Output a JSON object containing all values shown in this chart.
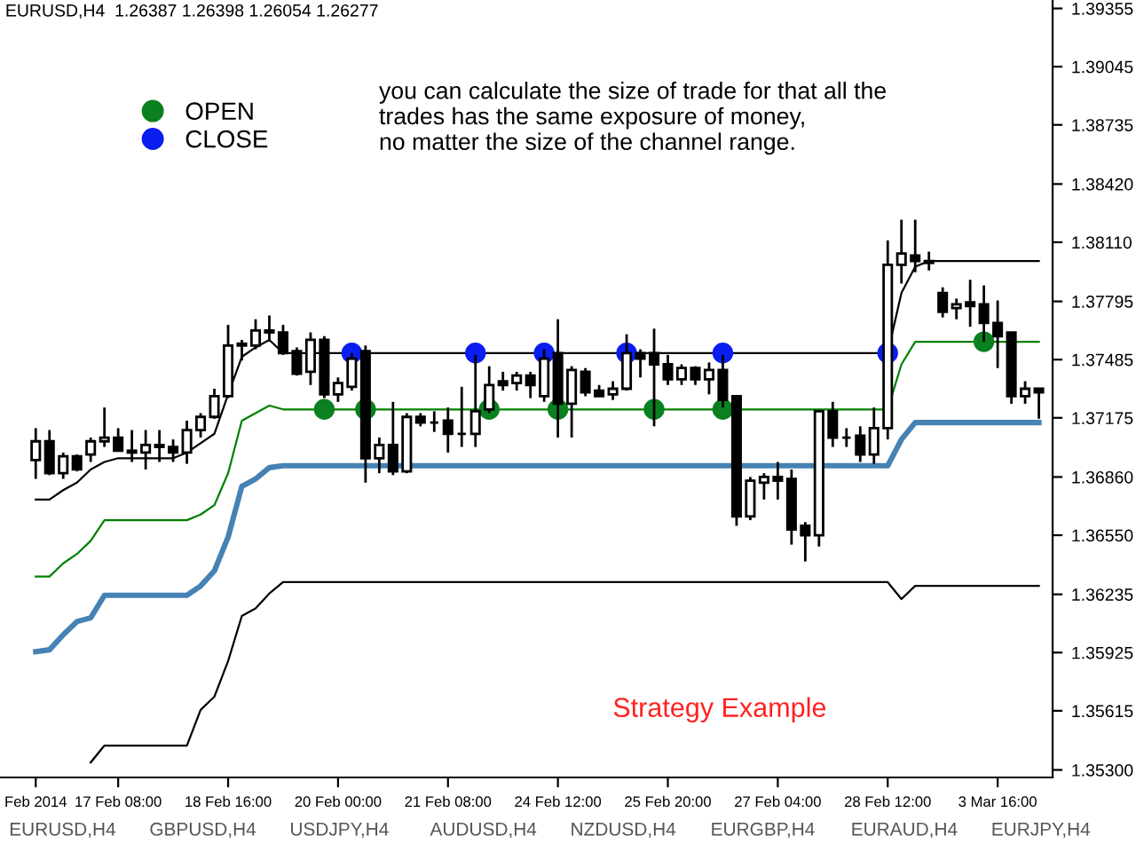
{
  "chart_data": {
    "type": "candlestick",
    "title": "EURUSD,H4  1.26387 1.26398 1.26054 1.26277",
    "categories": [
      "Feb 2014",
      null,
      null,
      null,
      null,
      null,
      "17 Feb 08:00",
      null,
      null,
      null,
      null,
      null,
      null,
      null,
      "18 Feb 16:00",
      null,
      null,
      null,
      null,
      null,
      null,
      null,
      "20 Feb 00:00",
      null,
      null,
      null,
      null,
      null,
      null,
      null,
      "21 Feb 08:00",
      null,
      null,
      null,
      null,
      null,
      null,
      null,
      "24 Feb 12:00",
      null,
      null,
      null,
      null,
      null,
      null,
      null,
      "25 Feb 20:00",
      null,
      null,
      null,
      null,
      null,
      null,
      null,
      "27 Feb 04:00",
      null,
      null,
      null,
      null,
      null,
      null,
      null,
      "28 Feb 12:00",
      null,
      null,
      null,
      null,
      null,
      null,
      null,
      "3 Mar 16:00",
      null,
      null,
      null
    ],
    "ohlc": [
      [
        1.3695,
        1.3712,
        1.3685,
        1.3705
      ],
      [
        1.3705,
        1.3711,
        1.3687,
        1.3688
      ],
      [
        1.3688,
        1.3699,
        1.3685,
        1.3697
      ],
      [
        1.3697,
        1.3698,
        1.3689,
        1.369
      ],
      [
        1.3698,
        1.3707,
        1.3694,
        1.3705
      ],
      [
        1.3705,
        1.3723,
        1.3702,
        1.3707
      ],
      [
        1.3707,
        1.3712,
        1.37,
        1.37
      ],
      [
        1.37,
        1.3711,
        1.3694,
        1.3699
      ],
      [
        1.3699,
        1.3711,
        1.369,
        1.3703
      ],
      [
        1.3703,
        1.3711,
        1.3694,
        1.3702
      ],
      [
        1.3702,
        1.3706,
        1.3694,
        1.3699
      ],
      [
        1.3699,
        1.3716,
        1.3693,
        1.3711
      ],
      [
        1.3711,
        1.372,
        1.3707,
        1.3718
      ],
      [
        1.3718,
        1.3733,
        1.3717,
        1.3729
      ],
      [
        1.3729,
        1.3767,
        1.3728,
        1.3756
      ],
      [
        1.3756,
        1.3759,
        1.3748,
        1.3757
      ],
      [
        1.3756,
        1.377,
        1.3754,
        1.3764
      ],
      [
        1.3764,
        1.3772,
        1.3758,
        1.3763
      ],
      [
        1.3763,
        1.3767,
        1.3751,
        1.3752
      ],
      [
        1.3753,
        1.3755,
        1.374,
        1.3741
      ],
      [
        1.3742,
        1.3763,
        1.3735,
        1.3759
      ],
      [
        1.3759,
        1.3761,
        1.3728,
        1.373
      ],
      [
        1.373,
        1.3739,
        1.3726,
        1.3736
      ],
      [
        1.3734,
        1.3752,
        1.3732,
        1.3749
      ],
      [
        1.3753,
        1.3756,
        1.3683,
        1.3696
      ],
      [
        1.3696,
        1.3707,
        1.3688,
        1.3703
      ],
      [
        1.3703,
        1.3726,
        1.3687,
        1.3689
      ],
      [
        1.3689,
        1.372,
        1.3688,
        1.3718
      ],
      [
        1.3718,
        1.372,
        1.3713,
        1.3715
      ],
      [
        1.3715,
        1.3721,
        1.371,
        1.3715
      ],
      [
        1.3716,
        1.3723,
        1.3699,
        1.3709
      ],
      [
        1.3709,
        1.3734,
        1.3702,
        1.3709
      ],
      [
        1.3709,
        1.3751,
        1.3702,
        1.3721
      ],
      [
        1.3722,
        1.3745,
        1.372,
        1.3735
      ],
      [
        1.3737,
        1.3742,
        1.3732,
        1.3735
      ],
      [
        1.3736,
        1.3742,
        1.3732,
        1.374
      ],
      [
        1.374,
        1.3742,
        1.3728,
        1.3735
      ],
      [
        1.3729,
        1.3754,
        1.3726,
        1.3749
      ],
      [
        1.3752,
        1.377,
        1.3707,
        1.3725
      ],
      [
        1.3725,
        1.3745,
        1.3707,
        1.3743
      ],
      [
        1.3742,
        1.3744,
        1.3729,
        1.3731
      ],
      [
        1.3732,
        1.3735,
        1.3729,
        1.3729
      ],
      [
        1.373,
        1.3737,
        1.3727,
        1.3733
      ],
      [
        1.3733,
        1.3762,
        1.3732,
        1.3752
      ],
      [
        1.3752,
        1.3754,
        1.3739,
        1.3749
      ],
      [
        1.3752,
        1.3765,
        1.3713,
        1.3746
      ],
      [
        1.3746,
        1.3751,
        1.3735,
        1.3738
      ],
      [
        1.3738,
        1.3746,
        1.3735,
        1.3744
      ],
      [
        1.3744,
        1.3745,
        1.3735,
        1.3738
      ],
      [
        1.3738,
        1.3747,
        1.373,
        1.3743
      ],
      [
        1.3743,
        1.3751,
        1.3723,
        1.3727
      ],
      [
        1.3729,
        1.3729,
        1.366,
        1.3665
      ],
      [
        1.3665,
        1.3686,
        1.3663,
        1.3684
      ],
      [
        1.3683,
        1.3688,
        1.3674,
        1.3686
      ],
      [
        1.3686,
        1.3694,
        1.3674,
        1.3684
      ],
      [
        1.3685,
        1.369,
        1.365,
        1.3658
      ],
      [
        1.366,
        1.3662,
        1.3641,
        1.3655
      ],
      [
        1.3655,
        1.3721,
        1.3649,
        1.3721
      ],
      [
        1.3721,
        1.3726,
        1.3702,
        1.3707
      ],
      [
        1.3707,
        1.3712,
        1.3702,
        1.3707
      ],
      [
        1.3708,
        1.3713,
        1.3694,
        1.3698
      ],
      [
        1.3698,
        1.3723,
        1.3693,
        1.3712
      ],
      [
        1.3712,
        1.3812,
        1.3706,
        1.3799
      ],
      [
        1.3799,
        1.3823,
        1.3789,
        1.3805
      ],
      [
        1.3804,
        1.3823,
        1.3795,
        1.3801
      ],
      [
        1.3801,
        1.3806,
        1.3796,
        1.38
      ],
      [
        1.3784,
        1.3787,
        1.3771,
        1.3774
      ],
      [
        1.3776,
        1.3781,
        1.377,
        1.3778
      ],
      [
        1.3779,
        1.3791,
        1.3766,
        1.3777
      ],
      [
        1.3778,
        1.3788,
        1.3758,
        1.3768
      ],
      [
        1.3768,
        1.378,
        1.3744,
        1.3761
      ],
      [
        1.3763,
        1.3763,
        1.3725,
        1.3729
      ],
      [
        1.3729,
        1.3737,
        1.3725,
        1.3733
      ],
      [
        1.3733,
        1.3733,
        1.3717,
        1.3731
      ]
    ],
    "series": [
      {
        "type": "line",
        "color": "#000000",
        "values": [
          1.3674,
          1.3674,
          1.3679,
          1.3683,
          1.369,
          1.3694,
          1.3696,
          1.3696,
          1.3696,
          1.3696,
          1.3696,
          1.3699,
          1.3704,
          1.3709,
          1.373,
          1.375,
          1.3755,
          1.3759,
          1.3752,
          1.3752,
          1.3752,
          1.3752,
          1.3752,
          1.3752,
          1.3752,
          1.3752,
          1.3752,
          1.3752,
          1.3752,
          1.3752,
          1.3752,
          1.3752,
          1.3752,
          1.3752,
          1.3752,
          1.3752,
          1.3752,
          1.3752,
          1.3752,
          1.3752,
          1.3752,
          1.3752,
          1.3752,
          1.3752,
          1.3752,
          1.3752,
          1.3752,
          1.3752,
          1.3752,
          1.3752,
          1.3752,
          1.3752,
          1.3752,
          1.3752,
          1.3752,
          1.3752,
          1.3752,
          1.3752,
          1.3752,
          1.3752,
          1.3752,
          1.3752,
          1.3752,
          1.3784,
          1.3798,
          1.3801,
          1.3801,
          1.3801,
          1.3801,
          1.3801,
          1.3801,
          1.3801,
          1.3801,
          1.3801
        ]
      },
      {
        "type": "line",
        "color": "#008000",
        "values": [
          1.3633,
          1.3633,
          1.364,
          1.3645,
          1.3652,
          1.3663,
          1.3663,
          1.3663,
          1.3663,
          1.3663,
          1.3663,
          1.3663,
          1.3666,
          1.3671,
          1.3688,
          1.3716,
          1.372,
          1.3724,
          1.3722,
          1.3722,
          1.3722,
          1.3722,
          1.3722,
          1.3722,
          1.3722,
          1.3722,
          1.3722,
          1.3722,
          1.3722,
          1.3722,
          1.3722,
          1.3722,
          1.3722,
          1.3722,
          1.3722,
          1.3722,
          1.3722,
          1.3722,
          1.3722,
          1.3722,
          1.3722,
          1.3722,
          1.3722,
          1.3722,
          1.3722,
          1.3722,
          1.3722,
          1.3722,
          1.3722,
          1.3722,
          1.3722,
          1.3722,
          1.3722,
          1.3722,
          1.3722,
          1.3722,
          1.3722,
          1.3722,
          1.3722,
          1.3722,
          1.3722,
          1.3722,
          1.3722,
          1.3746,
          1.3758,
          1.3758,
          1.3758,
          1.3758,
          1.3758,
          1.3758,
          1.3758,
          1.3758,
          1.3758,
          1.3758
        ]
      },
      {
        "type": "line",
        "color": "#4682b4",
        "values": [
          1.3593,
          1.3594,
          1.3602,
          1.3609,
          1.3611,
          1.3623,
          1.3623,
          1.3623,
          1.3623,
          1.3623,
          1.3623,
          1.3623,
          1.3628,
          1.3636,
          1.3654,
          1.3681,
          1.3685,
          1.3691,
          1.3692,
          1.3692,
          1.3692,
          1.3692,
          1.3692,
          1.3692,
          1.3692,
          1.3692,
          1.3692,
          1.3692,
          1.3692,
          1.3692,
          1.3692,
          1.3692,
          1.3692,
          1.3692,
          1.3692,
          1.3692,
          1.3692,
          1.3692,
          1.3692,
          1.3692,
          1.3692,
          1.3692,
          1.3692,
          1.3692,
          1.3692,
          1.3692,
          1.3692,
          1.3692,
          1.3692,
          1.3692,
          1.3692,
          1.3692,
          1.3692,
          1.3692,
          1.3692,
          1.3692,
          1.3692,
          1.3692,
          1.3692,
          1.3692,
          1.3692,
          1.3692,
          1.3692,
          1.3706,
          1.3715,
          1.3715,
          1.3715,
          1.3715,
          1.3715,
          1.3715,
          1.3715,
          1.3715,
          1.3715,
          1.3715
        ]
      },
      {
        "type": "line",
        "color": "#000000",
        "values": [
          null,
          null,
          null,
          null,
          1.3534,
          1.3543,
          1.3543,
          1.3543,
          1.3543,
          1.3543,
          1.3543,
          1.3543,
          1.3562,
          1.3569,
          1.3588,
          1.3612,
          1.3616,
          1.3624,
          1.363,
          1.363,
          1.363,
          1.363,
          1.363,
          1.363,
          1.363,
          1.363,
          1.363,
          1.363,
          1.363,
          1.363,
          1.363,
          1.363,
          1.363,
          1.363,
          1.363,
          1.363,
          1.363,
          1.363,
          1.363,
          1.363,
          1.363,
          1.363,
          1.363,
          1.363,
          1.363,
          1.363,
          1.363,
          1.363,
          1.363,
          1.363,
          1.363,
          1.363,
          1.363,
          1.363,
          1.363,
          1.363,
          1.363,
          1.363,
          1.363,
          1.363,
          1.363,
          1.363,
          1.363,
          1.3621,
          1.3628,
          1.3628,
          1.3628,
          1.3628,
          1.3628,
          1.3628,
          1.3628,
          1.3628,
          1.3628,
          1.3628
        ]
      },
      {
        "type": "scatter",
        "name": "OPEN",
        "color": "#0a8020",
        "marker": "circle",
        "values": [
          null,
          null,
          null,
          null,
          null,
          null,
          null,
          null,
          null,
          null,
          null,
          null,
          null,
          null,
          null,
          null,
          null,
          null,
          null,
          null,
          null,
          1.3722,
          null,
          null,
          1.3722,
          null,
          null,
          null,
          null,
          null,
          null,
          null,
          null,
          1.3722,
          null,
          null,
          null,
          null,
          1.3722,
          null,
          null,
          null,
          null,
          null,
          null,
          1.3722,
          null,
          null,
          null,
          null,
          1.3722,
          null,
          null,
          null,
          null,
          null,
          null,
          null,
          null,
          null,
          null,
          null,
          null,
          null,
          null,
          null,
          null,
          null,
          null,
          1.3758,
          null,
          null,
          null,
          null
        ]
      },
      {
        "type": "scatter",
        "name": "CLOSE",
        "color": "#0a1ef0",
        "marker": "circle",
        "values": [
          null,
          null,
          null,
          null,
          null,
          null,
          null,
          null,
          null,
          null,
          null,
          null,
          null,
          null,
          null,
          null,
          null,
          null,
          null,
          null,
          null,
          null,
          null,
          1.3752,
          null,
          null,
          null,
          null,
          null,
          null,
          null,
          null,
          1.3752,
          null,
          null,
          null,
          null,
          1.3752,
          null,
          null,
          null,
          null,
          null,
          1.3752,
          null,
          null,
          null,
          null,
          null,
          null,
          1.3752,
          null,
          null,
          null,
          null,
          null,
          null,
          null,
          null,
          null,
          null,
          null,
          1.3752,
          null,
          null,
          null,
          null,
          null,
          null,
          null,
          null,
          null,
          null,
          null
        ]
      }
    ],
    "ylim": [
      1.3526,
      1.394
    ],
    "yticks": [
      {
        "value": 1.353,
        "label": "1.35300"
      },
      1.35615,
      1.35925,
      1.36235,
      {
        "value": 1.3655,
        "label": "1.36550"
      },
      {
        "value": 1.3686,
        "label": "1.36860"
      },
      1.37175,
      1.37485,
      1.37795,
      {
        "value": 1.3811,
        "label": "1.38110"
      },
      {
        "value": 1.3842,
        "label": "1.38420"
      },
      1.38735,
      1.39045,
      1.39355
    ],
    "legend": "top left",
    "grid": false,
    "annotations": [
      "you can calculate the size of trade for that all the\ntrades has the same exposure of money,\nno matter the size of the channel range.",
      "Strategy Example",
      "EURUSD,H4",
      "GBPUSD,H4",
      "USDJPY,H4",
      "AUDUSD,H4",
      "NZDUSD,H4",
      "EURGBP,H4",
      "EURAUD,H4",
      "EURJPY,H4"
    ]
  }
}
